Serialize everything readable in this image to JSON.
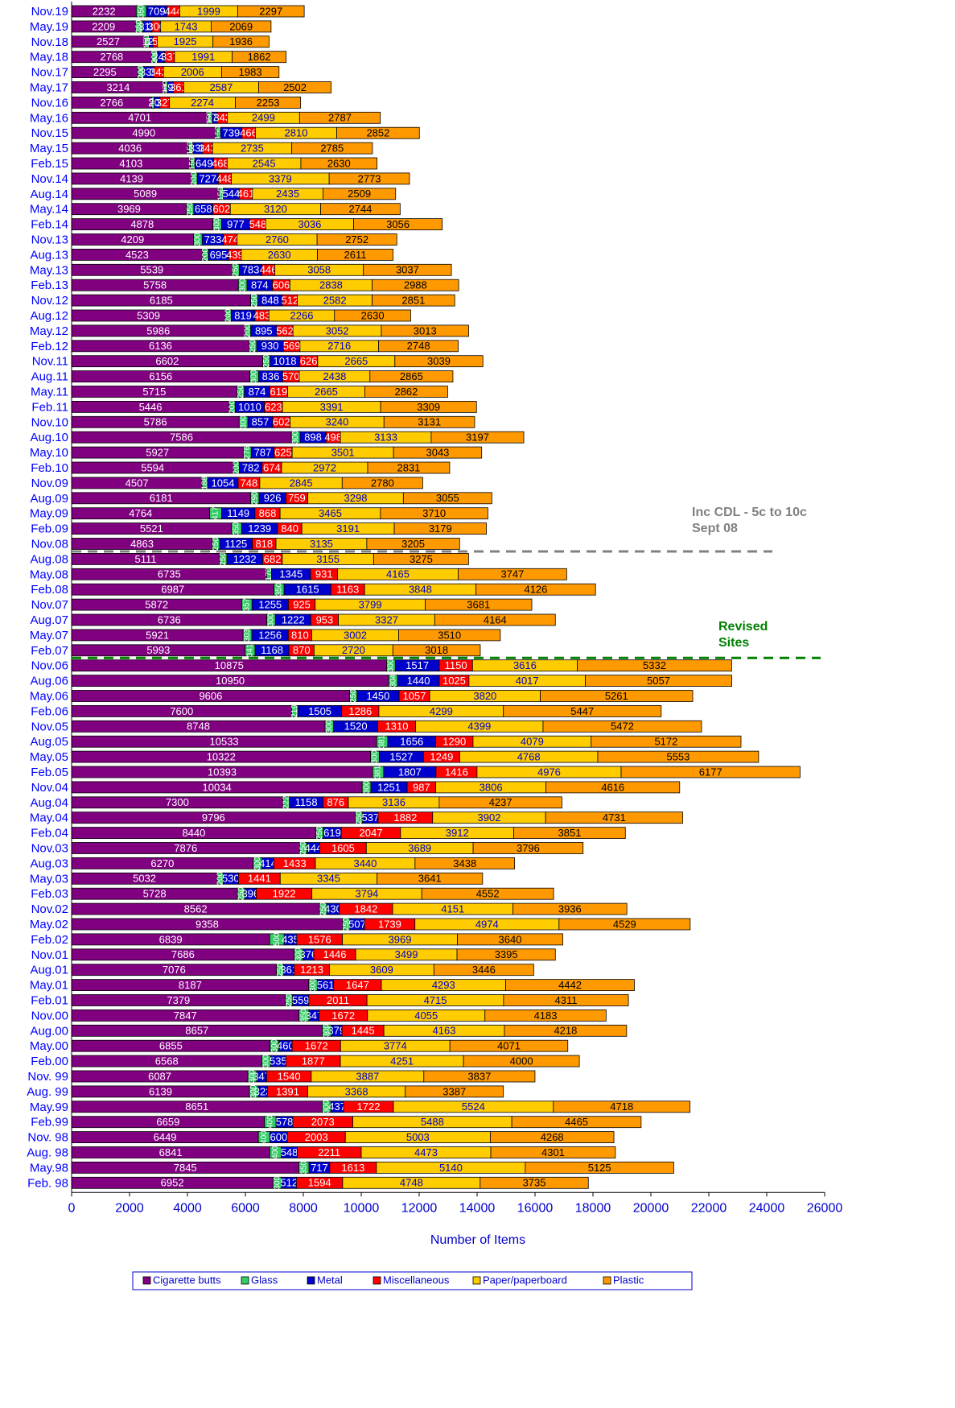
{
  "chart_data": {
    "type": "stacked_bar_horizontal",
    "x_label": "Number of Items",
    "categories": [
      "Nov.19",
      "May.19",
      "Nov.18",
      "May.18",
      "Nov.17",
      "May.17",
      "Nov.16",
      "May.16",
      "Nov.15",
      "May.15",
      "Feb.15",
      "Nov.14",
      "Aug.14",
      "May.14",
      "Feb.14",
      "Nov.13",
      "Aug.13",
      "May.13",
      "Feb.13",
      "Nov.12",
      "Aug.12",
      "May.12",
      "Feb.12",
      "Nov.11",
      "Aug.11",
      "May.11",
      "Feb.11",
      "Nov.10",
      "Aug.10",
      "May.10",
      "Feb.10",
      "Nov.09",
      "Aug.09",
      "May.09",
      "Feb.09",
      "Nov.08",
      "Aug.08",
      "May.08",
      "Feb.08",
      "Nov.07",
      "Aug.07",
      "May.07",
      "Feb.07",
      "Nov.06",
      "Aug.06",
      "May.06",
      "Feb.06",
      "Nov.05",
      "Aug.05",
      "May.05",
      "Feb.05",
      "Nov.04",
      "Aug.04",
      "May.04",
      "Feb.04",
      "Nov.03",
      "Aug.03",
      "May.03",
      "Feb.03",
      "Nov.02",
      "May.02",
      "Feb.02",
      "Nov.01",
      "Aug.01",
      "May.01",
      "Feb.01",
      "Nov.00",
      "Aug.00",
      "May.00",
      "Feb.00",
      "Nov. 99",
      "Aug. 99",
      "May.99",
      "Feb.99",
      "Nov. 98",
      "Aug. 98",
      "May.98",
      "Feb. 98"
    ],
    "series": [
      {
        "name": "Cigarette butts",
        "color": "#800080",
        "label_color": "#ffffff",
        "values": [
          2232,
          2209,
          2527,
          2768,
          2295,
          3214,
          2766,
          4701,
          4990,
          4036,
          4103,
          4139,
          5089,
          3969,
          4878,
          4209,
          4523,
          5539,
          5758,
          6185,
          5309,
          5986,
          6136,
          6602,
          6156,
          5715,
          5446,
          5786,
          7586,
          5927,
          5594,
          4507,
          6181,
          4764,
          5521,
          4863,
          5111,
          6735,
          6987,
          5872,
          6736,
          5921,
          5993,
          10875,
          10950,
          9606,
          7600,
          8748,
          10533,
          10322,
          10393,
          10034,
          7300,
          9796,
          8440,
          7876,
          6270,
          5032,
          5728,
          8562,
          9358,
          6839,
          7686,
          7076,
          8187,
          7379,
          7847,
          8657,
          6855,
          6568,
          6087,
          6139,
          8651,
          6659,
          6449,
          6841,
          7845,
          6952
        ]
      },
      {
        "name": "Glass",
        "color": "#33cc66",
        "label_color": "#ffffff",
        "values": [
          350,
          250,
          150,
          200,
          200,
          100,
          80,
          150,
          150,
          150,
          150,
          200,
          150,
          250,
          300,
          300,
          200,
          250,
          300,
          250,
          200,
          200,
          250,
          250,
          300,
          250,
          200,
          300,
          300,
          276,
          200,
          188,
          290,
          417,
          350,
          250,
          250,
          170,
          350,
          357,
          300,
          303,
          341,
          300,
          304,
          250,
          219,
          300,
          381,
          300,
          381,
          300,
          222,
          250,
          250,
          250,
          300,
          200,
          250,
          250,
          250,
          500,
          300,
          250,
          300,
          250,
          350,
          300,
          300,
          300,
          300,
          300,
          300,
          400,
          400,
          400,
          350,
          300
        ]
      },
      {
        "name": "Metal",
        "color": "#0000cc",
        "label_color": "#ffffff",
        "values": [
          709,
          315,
          129,
          248,
          335,
          196,
          206,
          178,
          739,
          338,
          649,
          727,
          544,
          658,
          977,
          733,
          695,
          783,
          874,
          848,
          819,
          895,
          930,
          1018,
          836,
          874,
          1010,
          857,
          898,
          787,
          782,
          1054,
          926,
          1149,
          1239,
          1125,
          1232,
          1345,
          1615,
          1255,
          1222,
          1256,
          1168,
          1517,
          1440,
          1450,
          1505,
          1520,
          1656,
          1527,
          1807,
          1251,
          1158,
          537,
          619,
          444,
          414,
          530,
          396,
          430,
          507,
          435,
          376,
          361,
          561,
          559,
          347,
          379,
          460,
          535,
          347,
          323,
          437,
          578,
          600,
          548,
          717,
          512
        ]
      },
      {
        "name": "Miscellaneous",
        "color": "#ff0000",
        "label_color": "#ffffff",
        "values": [
          444,
          300,
          150,
          337,
          342,
          361,
          327,
          343,
          466,
          343,
          468,
          448,
          461,
          602,
          548,
          474,
          439,
          446,
          606,
          512,
          483,
          562,
          569,
          626,
          570,
          619,
          623,
          602,
          498,
          625,
          674,
          748,
          759,
          868,
          840,
          818,
          682,
          931,
          1163,
          925,
          953,
          810,
          870,
          1150,
          1025,
          1057,
          1286,
          1310,
          1290,
          1249,
          1416,
          987,
          876,
          1882,
          2047,
          1605,
          1433,
          1441,
          1922,
          1842,
          1739,
          1576,
          1446,
          1213,
          1647,
          2011,
          1672,
          1445,
          1672,
          1877,
          1540,
          1391,
          1722,
          2073,
          2003,
          2211,
          1613,
          1594
        ]
      },
      {
        "name": "Paper/paperboard",
        "color": "#ffcc00",
        "label_color": "#0000cc",
        "values": [
          1999,
          1743,
          1925,
          1991,
          2006,
          2587,
          2274,
          2499,
          2810,
          2735,
          2545,
          3379,
          2435,
          3120,
          3036,
          2760,
          2630,
          3058,
          2838,
          2582,
          2266,
          3052,
          2716,
          2665,
          2438,
          2665,
          3391,
          3240,
          3133,
          3501,
          2972,
          2845,
          3298,
          3465,
          3191,
          3135,
          3155,
          4165,
          3848,
          3799,
          3327,
          3002,
          2720,
          3616,
          4017,
          3820,
          4299,
          4399,
          4079,
          4768,
          4976,
          3806,
          3136,
          3902,
          3912,
          3689,
          3440,
          3345,
          3794,
          4151,
          4974,
          3969,
          3499,
          3609,
          4293,
          4715,
          4055,
          4163,
          3774,
          4251,
          3887,
          3368,
          5524,
          5488,
          5003,
          4473,
          5140,
          4748
        ]
      },
      {
        "name": "Plastic",
        "color": "#ff9900",
        "label_color": "#000000",
        "values": [
          2297,
          2069,
          1936,
          1862,
          1983,
          2502,
          2253,
          2787,
          2852,
          2785,
          2630,
          2773,
          2509,
          2744,
          3056,
          2752,
          2611,
          3037,
          2988,
          2851,
          2630,
          3013,
          2748,
          3039,
          2865,
          2862,
          3309,
          3131,
          3197,
          3043,
          2831,
          2780,
          3055,
          3710,
          3179,
          3205,
          3275,
          3747,
          4126,
          3681,
          4164,
          3510,
          3018,
          5332,
          5057,
          5261,
          5447,
          5472,
          5172,
          5553,
          6177,
          4616,
          4237,
          4731,
          3851,
          3796,
          3438,
          3641,
          4552,
          3936,
          4529,
          3640,
          3395,
          3446,
          4442,
          4311,
          4183,
          4218,
          4071,
          4000,
          3837,
          3387,
          4718,
          4465,
          4268,
          4301,
          5125,
          3735
        ]
      }
    ],
    "xlim": [
      0,
      26000
    ],
    "xticks": [
      0,
      2000,
      4000,
      6000,
      8000,
      10000,
      12000,
      14000,
      16000,
      18000,
      20000,
      22000,
      24000,
      26000
    ],
    "annotations": [
      {
        "text": "Inc CDL - 5c to 10c Sept 08",
        "after": "Nov.08",
        "color": "#808080"
      },
      {
        "text": "Revised Sites",
        "after": "Feb.07",
        "color": "#008000"
      }
    ],
    "legend": "bottom"
  }
}
